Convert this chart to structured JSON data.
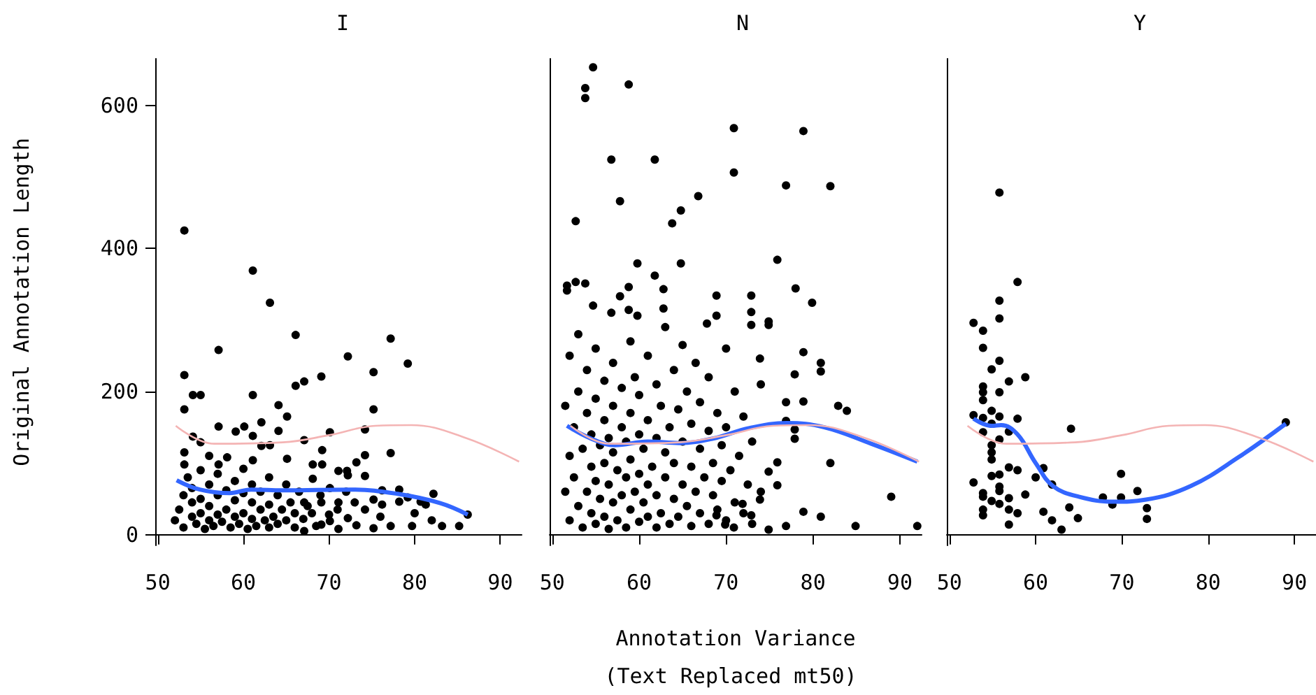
{
  "chart_data": [
    {
      "type": "scatter",
      "title": "I",
      "ylabel": "Original Annotation Length",
      "xlim": [
        49.7,
        92.5
      ],
      "xticks": [
        50,
        60,
        70,
        80,
        90
      ],
      "ylim": [
        -15,
        665
      ],
      "yticks": [
        0,
        200,
        400,
        600
      ],
      "series": [
        {
          "color": "#000000",
          "marker": "circle",
          "x": [
            53.1,
            61.1,
            63.1,
            57.1,
            66.1,
            77.2,
            72.2,
            79.2,
            53.1,
            75.2,
            69.1,
            67.1,
            66.1,
            54.1,
            55.0,
            61.1,
            64.1,
            53.1,
            65.1,
            75.2,
            57.1,
            60.1,
            62.1,
            64.1,
            70.1,
            74.2,
            67.1,
            54.1,
            55.0,
            59.1,
            61.1,
            62.1,
            63.1,
            69.2,
            77.2,
            74.2,
            73.2,
            68.1,
            69.2,
            65.1,
            53.1,
            56.0,
            57.1,
            61.1,
            58.1,
            53.1,
            82.2,
            78.2,
            76.2,
            79.2,
            80.7,
            81.3,
            86.2,
            83.2,
            85.2,
            78.2,
            75.2,
            76.2,
            74.2,
            77.2,
            79.7,
            75.2,
            73.2,
            72.2,
            71.1,
            70.1,
            69.1,
            71.1,
            72.2,
            74.2,
            71.1,
            72.1,
            68.1,
            70.1,
            67.1,
            67.1,
            69.1,
            52,
            52.5,
            53,
            53,
            53.5,
            54,
            54,
            54,
            54.5,
            55,
            55,
            55,
            55.5,
            56,
            56,
            56,
            56.5,
            57,
            57,
            57,
            57.5,
            58,
            58,
            58.5,
            59,
            59,
            59,
            59.5,
            60,
            60,
            60,
            60.5,
            61,
            61,
            61,
            61.5,
            62,
            62,
            62.5,
            63,
            63,
            63,
            63.5,
            64,
            64,
            64.5,
            65,
            65,
            65.5,
            66,
            66,
            66.5,
            67,
            67.5,
            68,
            68.5,
            69,
            70,
            71,
            72,
            73,
            76,
            82,
            80
          ],
          "values": [
            425,
            369,
            324,
            258,
            279,
            274,
            249,
            239,
            223,
            227,
            221,
            214,
            208,
            195,
            195,
            195,
            181,
            175,
            165,
            175,
            151,
            151,
            157,
            145,
            143,
            147,
            132,
            137,
            129,
            144,
            138,
            124,
            125,
            118,
            114,
            111,
            101,
            98,
            98,
            106,
            115,
            110,
            98,
            104,
            108,
            98,
            57,
            63,
            62,
            52,
            46,
            42,
            28,
            12,
            12,
            46,
            49,
            42,
            35,
            12,
            12,
            9,
            13,
            23,
            8,
            19,
            14,
            45,
            83,
            82,
            89,
            89,
            78,
            65,
            45,
            5,
            45,
            20,
            35,
            55,
            10,
            80,
            25,
            45,
            65,
            15,
            30,
            50,
            90,
            8,
            20,
            40,
            70,
            12,
            28,
            55,
            85,
            18,
            35,
            62,
            10,
            25,
            48,
            75,
            15,
            30,
            58,
            92,
            8,
            22,
            45,
            70,
            12,
            35,
            60,
            20,
            10,
            42,
            80,
            25,
            55,
            15,
            35,
            20,
            70,
            45,
            10,
            30,
            60,
            22,
            40,
            30,
            12,
            55,
            28,
            35,
            60,
            45,
            25,
            20,
            30
          ]
        },
        {
          "type": "line",
          "color": "#3366ff",
          "marker": "none",
          "x": [
            52.2,
            54.9,
            58.4,
            60.9,
            64.6,
            72.7,
            78,
            83,
            86.2
          ],
          "values": [
            76,
            63,
            58,
            63,
            62,
            63,
            57,
            44,
            28
          ]
        },
        {
          "type": "line",
          "color": "#f4b4b4",
          "marker": "none",
          "x": [
            52.1,
            56.6,
            64.6,
            70,
            75.4,
            79.6,
            86,
            92.2
          ],
          "values": [
            152,
            127,
            129,
            139,
            152,
            153,
            135,
            102
          ]
        }
      ]
    },
    {
      "type": "scatter",
      "title": "N",
      "xlabel": "Annotation Variance",
      "annotations": [
        "(Text Replaced mt50)"
      ],
      "tick_labels": "x",
      "xlim": [
        49.7,
        92.5
      ],
      "xticks": [
        50,
        60,
        70,
        80,
        90
      ],
      "ylim": [
        -15,
        665
      ],
      "yticks": [
        0,
        200,
        400,
        600
      ],
      "series": [
        {
          "color": "#000000",
          "marker": "circle",
          "x": [
            54.7,
            53.8,
            53.8,
            58.8,
            70.9,
            78.9,
            56.8,
            61.8,
            70.9,
            76.9,
            82.0,
            57.8,
            66.8,
            64.8,
            63.8,
            52.7,
            75.9,
            59.8,
            64.8,
            61.8,
            78.0,
            79.9,
            51.7,
            51.7,
            52.7,
            53.8,
            58.8,
            62.8,
            57.8,
            68.9,
            72.9,
            54.7,
            62.8,
            58.8,
            56.8,
            59.8,
            68.9,
            72.9,
            72.9,
            74.9,
            74.9,
            67.8,
            78.9,
            80.9,
            80.9,
            82.9,
            83.9,
            82.0,
            89.0,
            92.0,
            84.9,
            80.9,
            78.9,
            76.9,
            74.9,
            77.9,
            77.9,
            76.9,
            76.9,
            77.9,
            73.9,
            78.9,
            75.9,
            74.9,
            75.9,
            73.9,
            72.9,
            71.9,
            70.9,
            69.9,
            68.9,
            51.5,
            51.5,
            52,
            52,
            52,
            52.5,
            52.5,
            53,
            53,
            53,
            53.5,
            53.5,
            54,
            54,
            54,
            54.5,
            54.5,
            54.5,
            55,
            55,
            55,
            55,
            55.5,
            55.5,
            56,
            56,
            56,
            56,
            56.5,
            56.5,
            56.5,
            57,
            57,
            57,
            57,
            57.5,
            57.5,
            58,
            58,
            58,
            58.5,
            58.5,
            58.5,
            59,
            59,
            59,
            59,
            59.5,
            59.5,
            60,
            60,
            60,
            60,
            60.5,
            60.5,
            61,
            61,
            61,
            61,
            61.5,
            62,
            62,
            62,
            62,
            62.5,
            62.5,
            63,
            63,
            63,
            63.5,
            63.5,
            64,
            64,
            64,
            64.5,
            64.5,
            65,
            65,
            65,
            65.5,
            65.5,
            66,
            66,
            66,
            66.5,
            66.5,
            67,
            67,
            67,
            67.5,
            68,
            68,
            68,
            68.5,
            68.5,
            69,
            69,
            69.5,
            69.5,
            70,
            70,
            70,
            70.5,
            71,
            71,
            71.5,
            72,
            72,
            72.5,
            73,
            73,
            74,
            74
          ],
          "values": [
            653,
            624,
            610,
            629,
            568,
            564,
            524,
            524,
            506,
            488,
            487,
            466,
            473,
            453,
            435,
            438,
            384,
            379,
            379,
            362,
            344,
            324,
            348,
            341,
            353,
            351,
            346,
            343,
            333,
            334,
            334,
            320,
            316,
            314,
            310,
            306,
            306,
            311,
            293,
            298,
            293,
            295,
            255,
            240,
            228,
            180,
            173,
            100,
            53,
            12,
            12,
            25,
            32,
            12,
            7,
            134,
            147,
            159,
            185,
            224,
            246,
            186,
            101,
            88,
            69,
            49,
            27,
            43,
            10,
            14,
            27,
            60,
            180,
            20,
            110,
            250,
            80,
            150,
            40,
            200,
            280,
            10,
            120,
            60,
            170,
            230,
            30,
            95,
            140,
            15,
            75,
            190,
            260,
            50,
            125,
            25,
            100,
            160,
            215,
            8,
            70,
            135,
            45,
            115,
            180,
            240,
            20,
            90,
            55,
            150,
            205,
            10,
            80,
            130,
            35,
            105,
            170,
            270,
            60,
            220,
            18,
            85,
            140,
            195,
            45,
            120,
            25,
            70,
            160,
            250,
            95,
            10,
            55,
            135,
            210,
            30,
            180,
            80,
            115,
            290,
            15,
            150,
            50,
            100,
            230,
            25,
            175,
            70,
            130,
            265,
            40,
            200,
            12,
            95,
            155,
            60,
            240,
            30,
            120,
            185,
            80,
            15,
            145,
            220,
            55,
            100,
            35,
            170,
            75,
            125,
            20,
            150,
            260,
            90,
            45,
            200,
            110,
            30,
            165,
            70,
            130,
            15,
            60,
            210
          ]
        },
        {
          "type": "line",
          "color": "#3366ff",
          "marker": "none",
          "x": [
            51.7,
            54.5,
            57.2,
            61,
            64.6,
            68.4,
            72.7,
            77,
            81.3,
            86.7,
            92
          ],
          "values": [
            152,
            134,
            125,
            130,
            128,
            134,
            149,
            156,
            150,
            127,
            102
          ]
        },
        {
          "type": "line",
          "color": "#f4b4b4",
          "marker": "none",
          "x": [
            52.1,
            56.6,
            64.6,
            70,
            75.4,
            79.6,
            86,
            92.2
          ],
          "values": [
            152,
            127,
            129,
            139,
            152,
            153,
            135,
            102
          ]
        }
      ]
    },
    {
      "type": "scatter",
      "title": "Y",
      "tick_labels": "x",
      "xlim": [
        49.7,
        92.5
      ],
      "xticks": [
        50,
        60,
        70,
        80,
        90
      ],
      "ylim": [
        -15,
        665
      ],
      "yticks": [
        0,
        200,
        400,
        600
      ],
      "series": [
        {
          "color": "#000000",
          "marker": "circle",
          "x": [
            55.8,
            57.9,
            55.8,
            55.8,
            52.8,
            53.9,
            53.9,
            55.8,
            54.9,
            56.9,
            58.8,
            53.9,
            53.9,
            55.8,
            53.9,
            52.8,
            53.9,
            54.9,
            55.8,
            57.9,
            54.9,
            53.9,
            55.8,
            56.9,
            64.1,
            54.9,
            54.9,
            54.9,
            56.9,
            57.9,
            60.9,
            60.0,
            54.9,
            55.8,
            52.8,
            69.9,
            61.9,
            55.8,
            55.8,
            53.9,
            53.9,
            58.8,
            56.9,
            54.9,
            55.8,
            71.8,
            67.8,
            69.9,
            68.9,
            63.9,
            72.9,
            53.9,
            56.9,
            57.9,
            60.9,
            53.9,
            64.9,
            72.9,
            61.9,
            56.9,
            63.0,
            89.0
          ],
          "values": [
            478,
            353,
            327,
            302,
            296,
            285,
            261,
            243,
            231,
            214,
            220,
            207,
            199,
            199,
            188,
            167,
            163,
            173,
            165,
            162,
            155,
            143,
            133,
            144,
            148,
            125,
            115,
            105,
            94,
            90,
            93,
            80,
            82,
            84,
            73,
            85,
            70,
            67,
            61,
            58,
            53,
            56,
            51,
            47,
            43,
            61,
            52,
            52,
            42,
            38,
            37,
            35,
            35,
            30,
            32,
            27,
            23,
            22,
            20,
            14,
            7,
            157
          ]
        },
        {
          "type": "line",
          "color": "#3366ff",
          "marker": "none",
          "x": [
            52.8,
            54.9,
            56,
            57.9,
            60,
            62,
            65,
            69,
            72.8,
            78,
            83.5,
            89
          ],
          "values": [
            162,
            152,
            153,
            140,
            100,
            68,
            53,
            46,
            49,
            68,
            108,
            155
          ]
        },
        {
          "type": "line",
          "color": "#f4b4b4",
          "marker": "none",
          "x": [
            52.1,
            56.6,
            64.6,
            70,
            75.4,
            79.6,
            86,
            92.2
          ],
          "values": [
            152,
            127,
            129,
            139,
            152,
            153,
            135,
            102
          ]
        }
      ]
    }
  ]
}
